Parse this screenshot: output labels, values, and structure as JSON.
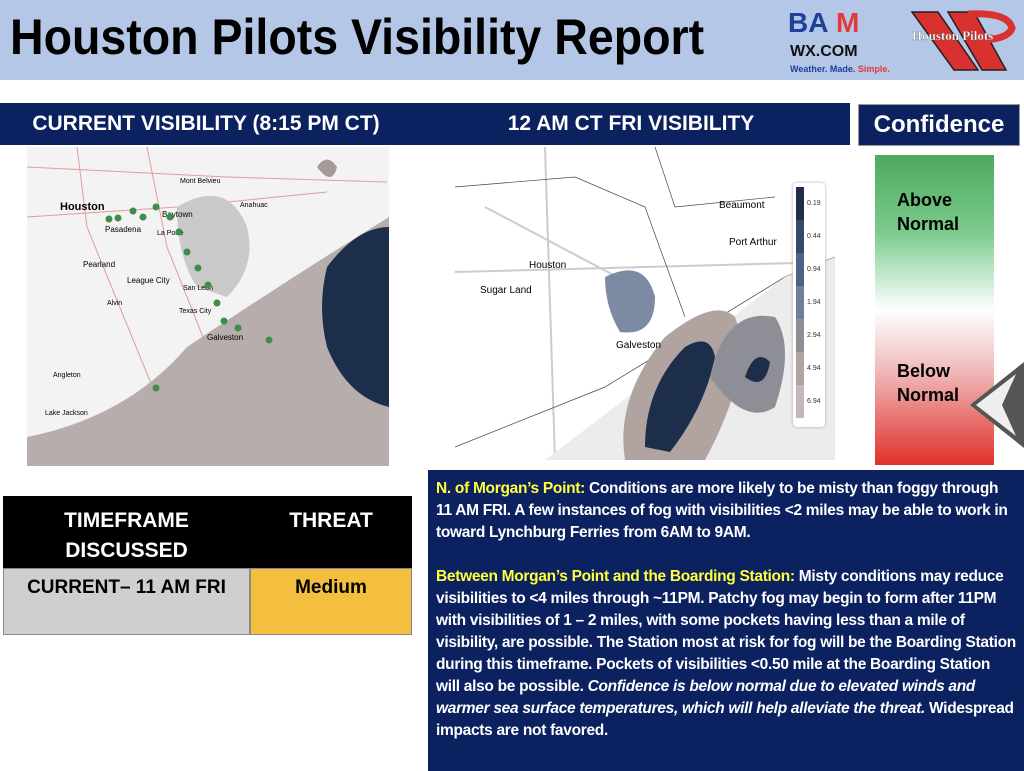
{
  "header": {
    "title": "Houston Pilots Visibility Report",
    "logo_bam": "BAM WX.COM Weather. Made. Simple.",
    "logo_pilots": "Houston Pilots"
  },
  "current": {
    "title": "CURRENT VISIBILITY (8:15 PM CT)",
    "places": [
      "Mont Belvieu",
      "Houston",
      "Baytown",
      "Anahuac",
      "Pasadena",
      "La Porte",
      "Pearland",
      "League City",
      "San Leon",
      "Alvin",
      "Texas City",
      "Galveston",
      "Angleton",
      "Lake Jackson"
    ]
  },
  "forecast": {
    "title": "12 AM CT FRI VISIBILITY",
    "places": [
      "Beaumont",
      "Port Arthur",
      "Houston",
      "Sugar Land",
      "Galveston"
    ],
    "legend": [
      "0.19",
      "0.44",
      "0.94",
      "1.94",
      "2.94",
      "4.94",
      "6.94"
    ],
    "legend_colors": [
      "#1c2e4a",
      "#34496b",
      "#4d6287",
      "#6f7f99",
      "#8e8e96",
      "#b0a3a0",
      "#c4b7b8"
    ]
  },
  "confidence": {
    "title": "Confidence",
    "above": "Above Normal",
    "below": "Below Normal",
    "level": "below-normal"
  },
  "table": {
    "col1": "TIMEFRAME DISCUSSED",
    "col2": "THREAT",
    "row_timeframe": "CURRENT– 11 AM FRI",
    "row_threat": "Medium",
    "threat_color": "#f4bf3f"
  },
  "discussion": {
    "s1_head": "N. of Morgan’s Point:",
    "s1_body": " Conditions are more likely to be misty than foggy through 11 AM FRI. A few instances of fog with visibilities <2 miles may be able to work in toward Lynchburg Ferries from 6AM to 9AM.",
    "s2_head": "Between Morgan’s Point and the Boarding Station:",
    "s2_body": " Misty conditions may reduce visibilities to <4 miles through ~11PM. Patchy fog may begin to form after 11PM with visibilities of 1 – 2 miles, with some pockets having less than a mile of visibility, are possible. The Station most at risk for fog will be the Boarding Station during this timeframe. Pockets of visibilities <0.50 mile at the Boarding Station will also be possible. ",
    "s2_italic": "Confidence is below normal due to elevated winds and warmer sea surface temperatures, which will help alleviate the threat.",
    "s2_tail": " Widespread impacts are not favored."
  }
}
